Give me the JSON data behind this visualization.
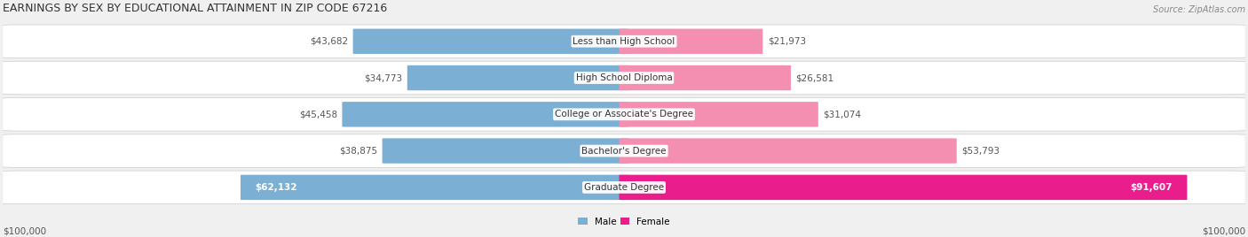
{
  "title": "EARNINGS BY SEX BY EDUCATIONAL ATTAINMENT IN ZIP CODE 67216",
  "source": "Source: ZipAtlas.com",
  "categories": [
    "Less than High School",
    "High School Diploma",
    "College or Associate's Degree",
    "Bachelor's Degree",
    "Graduate Degree"
  ],
  "male_values": [
    43682,
    34773,
    45458,
    38875,
    62132
  ],
  "female_values": [
    21973,
    26581,
    31074,
    53793,
    91607
  ],
  "male_labels": [
    "$43,682",
    "$34,773",
    "$45,458",
    "$38,875",
    "$62,132"
  ],
  "female_labels": [
    "$21,973",
    "$26,581",
    "$31,074",
    "$53,793",
    "$91,607"
  ],
  "male_color": "#7bafd4",
  "female_color": "#f48fb1",
  "female_color_last": "#e91e8c",
  "max_val": 100000,
  "axis_label_left": "$100,000",
  "axis_label_right": "$100,000",
  "legend_male": "Male",
  "legend_female": "Female",
  "bg_color": "#f0f0f0",
  "title_fontsize": 9,
  "source_fontsize": 7,
  "label_fontsize": 7.5,
  "cat_fontsize": 7.5
}
